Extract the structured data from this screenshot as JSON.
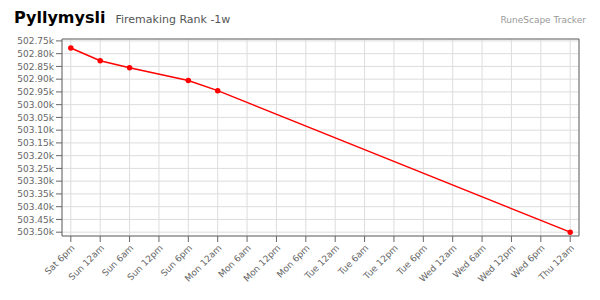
{
  "chart_data": {
    "type": "line",
    "title": "Pyllymysli",
    "subtitle": "Firemaking Rank -1w",
    "annotation": "RuneScape Tracker",
    "x": [
      0,
      1,
      2,
      4,
      5,
      17
    ],
    "values": [
      502778,
      502828,
      502855,
      502905,
      502945,
      503500
    ],
    "color": "#ff0000",
    "marker": "circle",
    "xlim": [
      -0.3,
      17.3
    ],
    "xticks": [
      {
        "value": 0,
        "label": "Sat 6pm"
      },
      {
        "value": 1,
        "label": "Sun 12am"
      },
      {
        "value": 2,
        "label": "Sun 6am"
      },
      {
        "value": 3,
        "label": "Sun 12pm"
      },
      {
        "value": 4,
        "label": "Sun 6pm"
      },
      {
        "value": 5,
        "label": "Mon 12am"
      },
      {
        "value": 6,
        "label": "Mon 6am"
      },
      {
        "value": 7,
        "label": "Mon 12pm"
      },
      {
        "value": 8,
        "label": "Mon 6pm"
      },
      {
        "value": 9,
        "label": "Tue 12am"
      },
      {
        "value": 10,
        "label": "Tue 6am"
      },
      {
        "value": 11,
        "label": "Tue 12pm"
      },
      {
        "value": 12,
        "label": "Tue 6pm"
      },
      {
        "value": 13,
        "label": "Wed 12am"
      },
      {
        "value": 14,
        "label": "Wed 6am"
      },
      {
        "value": 15,
        "label": "Wed 12pm"
      },
      {
        "value": 16,
        "label": "Wed 6pm"
      },
      {
        "value": 17,
        "label": "Thu 12am"
      }
    ],
    "ylim": [
      503515,
      502742.5
    ],
    "yticks": [
      {
        "value": 502750,
        "label": "502.75k"
      },
      {
        "value": 502800,
        "label": "502.80k"
      },
      {
        "value": 502850,
        "label": "502.85k"
      },
      {
        "value": 502900,
        "label": "502.90k"
      },
      {
        "value": 502950,
        "label": "502.95k"
      },
      {
        "value": 503000,
        "label": "503.00k"
      },
      {
        "value": 503050,
        "label": "503.05k"
      },
      {
        "value": 503100,
        "label": "503.10k"
      },
      {
        "value": 503150,
        "label": "503.15k"
      },
      {
        "value": 503200,
        "label": "503.20k"
      },
      {
        "value": 503250,
        "label": "503.25k"
      },
      {
        "value": 503300,
        "label": "503.30k"
      },
      {
        "value": 503350,
        "label": "503.35k"
      },
      {
        "value": 503400,
        "label": "503.40k"
      },
      {
        "value": 503450,
        "label": "503.45k"
      },
      {
        "value": 503500,
        "label": "503.50k"
      }
    ],
    "grid": true
  }
}
